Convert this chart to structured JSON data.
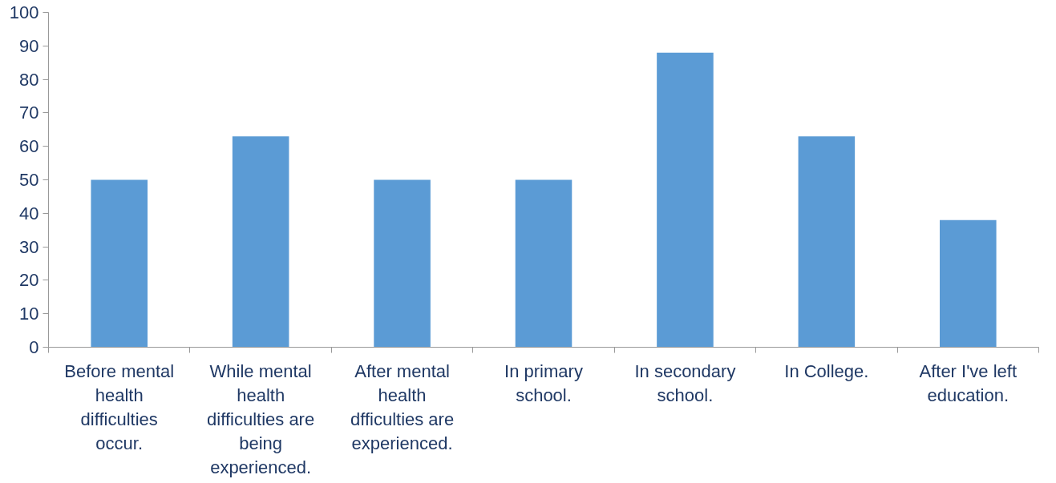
{
  "chart_data": {
    "type": "bar",
    "categories": [
      "Before mental health difficulties occur.",
      "While mental health difficulties are being experienced.",
      "After mental health dfficulties are experienced.",
      "In primary school.",
      "In secondary school.",
      "In College.",
      "After I've left education."
    ],
    "values": [
      50,
      63,
      50,
      50,
      88,
      63,
      38
    ],
    "color": "#5b9bd5",
    "ylim": [
      0,
      100
    ],
    "yticks": [
      0,
      10,
      20,
      30,
      40,
      50,
      60,
      70,
      80,
      90,
      100
    ],
    "grid": false
  }
}
